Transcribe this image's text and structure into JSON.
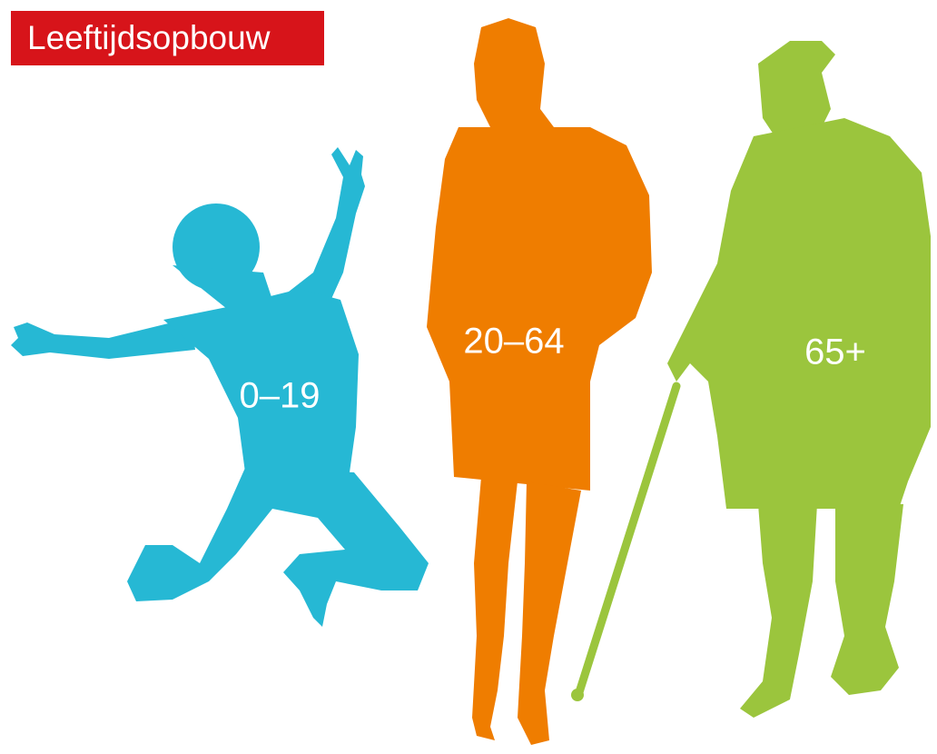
{
  "title": "Leeftijdsopbouw",
  "groups": [
    {
      "label": "0–19"
    },
    {
      "label": "20–64"
    },
    {
      "label": "65+"
    }
  ]
}
